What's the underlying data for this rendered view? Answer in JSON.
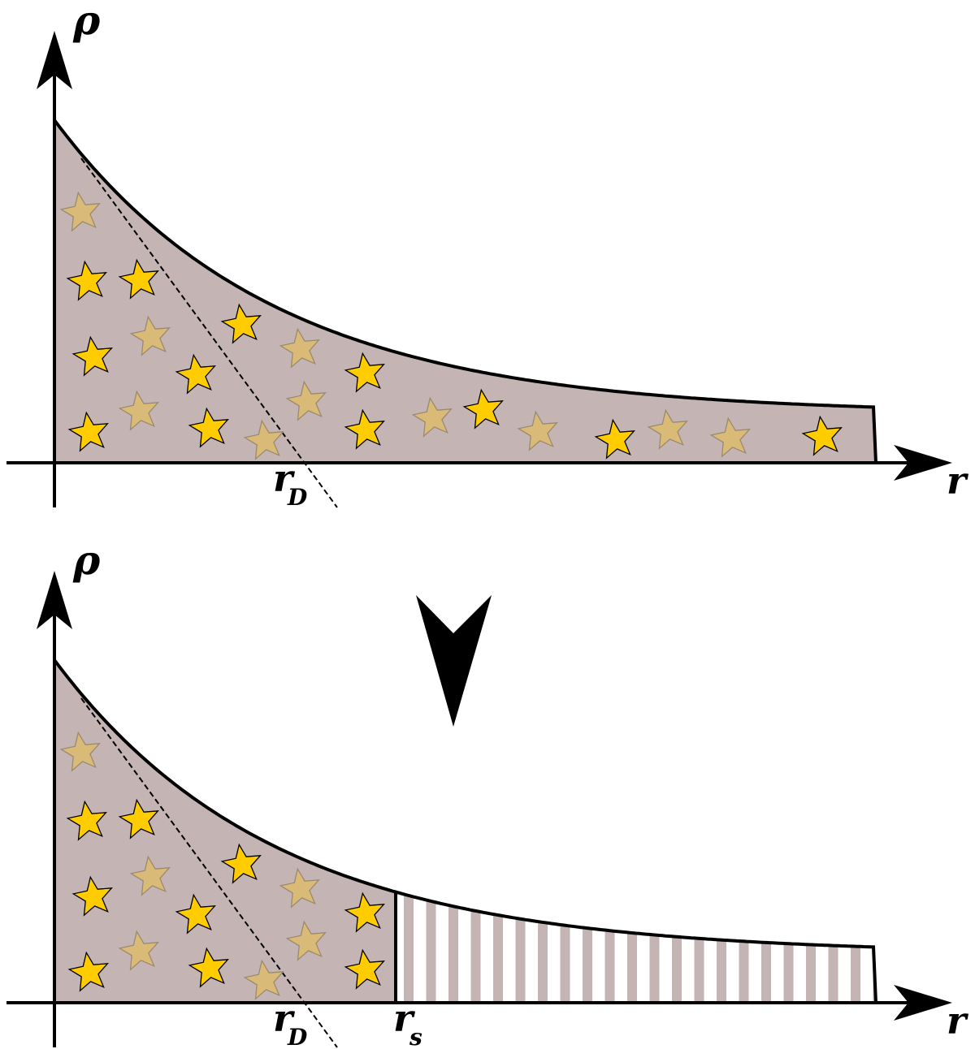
{
  "panels": [
    {
      "y_label": "ρ",
      "x_label": "r",
      "markers": [
        {
          "symbol": "r",
          "subscript": "D"
        }
      ]
    },
    {
      "y_label": "ρ",
      "x_label": "r",
      "markers": [
        {
          "symbol": "r",
          "subscript": "D"
        },
        {
          "symbol": "r",
          "subscript": "s"
        }
      ]
    }
  ]
}
